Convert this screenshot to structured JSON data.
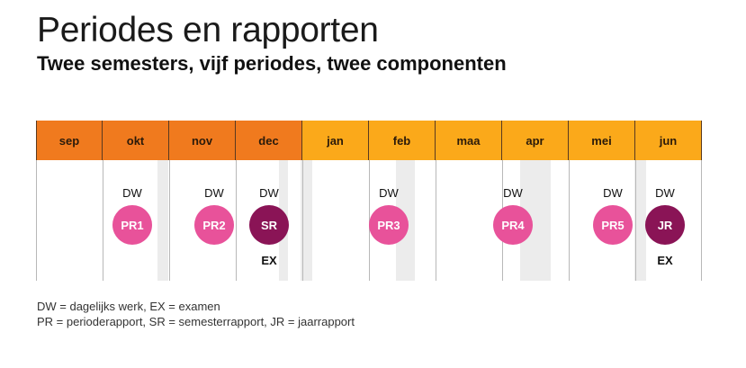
{
  "title": "Periodes en rapporten",
  "subtitle": "Twee semesters, vijf periodes, twee componenten",
  "colors": {
    "semester1": "#f07a1e",
    "semester2": "#fba91a",
    "periodrapport": "#e8529a",
    "semesterrapport": "#8a1456",
    "gridline": "#b8b8b8",
    "shade": "#ececec"
  },
  "months": [
    {
      "label": "sep",
      "semester": 1
    },
    {
      "label": "okt",
      "semester": 1
    },
    {
      "label": "nov",
      "semester": 1
    },
    {
      "label": "dec",
      "semester": 1
    },
    {
      "label": "jan",
      "semester": 2
    },
    {
      "label": "feb",
      "semester": 2
    },
    {
      "label": "maa",
      "semester": 2
    },
    {
      "label": "apr",
      "semester": 2
    },
    {
      "label": "mei",
      "semester": 2
    },
    {
      "label": "jun",
      "semester": 2
    }
  ],
  "dw_label": "DW",
  "ex_label": "EX",
  "reports": [
    {
      "label": "PR1",
      "type": "period",
      "dw": true,
      "ex": false
    },
    {
      "label": "PR2",
      "type": "period",
      "dw": true,
      "ex": false
    },
    {
      "label": "SR",
      "type": "semester",
      "dw": true,
      "ex": true
    },
    {
      "label": "PR3",
      "type": "period",
      "dw": true,
      "ex": false
    },
    {
      "label": "PR4",
      "type": "period",
      "dw": true,
      "ex": false
    },
    {
      "label": "PR5",
      "type": "period",
      "dw": true,
      "ex": false
    },
    {
      "label": "JR",
      "type": "semester",
      "dw": true,
      "ex": true
    }
  ],
  "legend": {
    "line1": "DW = dagelijks werk, EX = examen",
    "line2": "PR = perioderapport, SR = semesterrapport, JR = jaarrapport"
  }
}
